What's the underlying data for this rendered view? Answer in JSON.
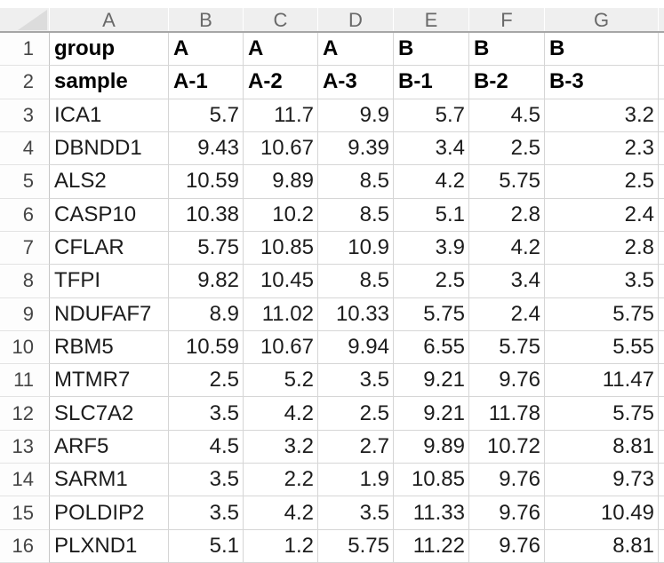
{
  "sheet": {
    "column_headers": [
      "A",
      "B",
      "C",
      "D",
      "E",
      "F",
      "G"
    ],
    "rows": [
      {
        "num": "1",
        "is_header_row": true,
        "cells": [
          "group",
          "A",
          "A",
          "A",
          "B",
          "B",
          "B"
        ]
      },
      {
        "num": "2",
        "is_header_row": true,
        "cells": [
          "sample",
          "A-1",
          "A-2",
          "A-3",
          "B-1",
          "B-2",
          "B-3"
        ]
      },
      {
        "num": "3",
        "is_header_row": false,
        "cells": [
          "ICA1",
          "5.7",
          "11.7",
          "9.9",
          "5.7",
          "4.5",
          "3.2"
        ]
      },
      {
        "num": "4",
        "is_header_row": false,
        "cells": [
          "DBNDD1",
          "9.43",
          "10.67",
          "9.39",
          "3.4",
          "2.5",
          "2.3"
        ]
      },
      {
        "num": "5",
        "is_header_row": false,
        "cells": [
          "ALS2",
          "10.59",
          "9.89",
          "8.5",
          "4.2",
          "5.75",
          "2.5"
        ]
      },
      {
        "num": "6",
        "is_header_row": false,
        "cells": [
          "CASP10",
          "10.38",
          "10.2",
          "8.5",
          "5.1",
          "2.8",
          "2.4"
        ]
      },
      {
        "num": "7",
        "is_header_row": false,
        "cells": [
          "CFLAR",
          "5.75",
          "10.85",
          "10.9",
          "3.9",
          "4.2",
          "2.8"
        ]
      },
      {
        "num": "8",
        "is_header_row": false,
        "cells": [
          "TFPI",
          "9.82",
          "10.45",
          "8.5",
          "2.5",
          "3.4",
          "3.5"
        ]
      },
      {
        "num": "9",
        "is_header_row": false,
        "cells": [
          "NDUFAF7",
          "8.9",
          "11.02",
          "10.33",
          "5.75",
          "2.4",
          "5.75"
        ]
      },
      {
        "num": "10",
        "is_header_row": false,
        "cells": [
          "RBM5",
          "10.59",
          "10.67",
          "9.94",
          "6.55",
          "5.75",
          "5.55"
        ]
      },
      {
        "num": "11",
        "is_header_row": false,
        "cells": [
          "MTMR7",
          "2.5",
          "5.2",
          "3.5",
          "9.21",
          "9.76",
          "11.47"
        ]
      },
      {
        "num": "12",
        "is_header_row": false,
        "cells": [
          "SLC7A2",
          "3.5",
          "4.2",
          "2.5",
          "9.21",
          "11.78",
          "5.75"
        ]
      },
      {
        "num": "13",
        "is_header_row": false,
        "cells": [
          "ARF5",
          "4.5",
          "3.2",
          "2.7",
          "9.89",
          "10.72",
          "8.81"
        ]
      },
      {
        "num": "14",
        "is_header_row": false,
        "cells": [
          "SARM1",
          "3.5",
          "2.2",
          "1.9",
          "10.85",
          "9.76",
          "9.73"
        ]
      },
      {
        "num": "15",
        "is_header_row": false,
        "cells": [
          "POLDIP2",
          "3.5",
          "4.2",
          "3.5",
          "11.33",
          "9.76",
          "10.49"
        ]
      },
      {
        "num": "16",
        "is_header_row": false,
        "cells": [
          "PLXND1",
          "5.1",
          "1.2",
          "5.75",
          "11.22",
          "9.76",
          "8.81"
        ]
      }
    ],
    "colors": {
      "header_bg": "#efefef",
      "header_divider": "#a6a6a6",
      "gridline": "#d6d6d6",
      "row_header_line": "#c6c6c6",
      "header_text": "#696969",
      "row_number_text": "#454545",
      "cell_text": "#1c1c1c",
      "select_all_triangle": "#dcdcdc"
    }
  }
}
